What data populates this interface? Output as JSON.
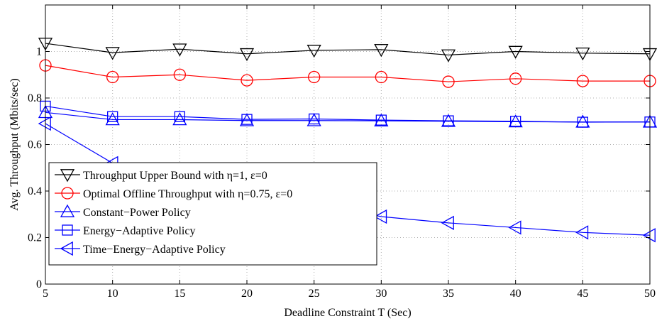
{
  "chart_data": {
    "type": "line",
    "xlabel": "Deadline Constraint T (Sec)",
    "ylabel": "Avg. Throughput (Mbits/sec)",
    "xlim": [
      5,
      50
    ],
    "ylim": [
      0,
      1.2
    ],
    "xticks": [
      "5",
      "10",
      "15",
      "20",
      "25",
      "30",
      "35",
      "40",
      "45",
      "50"
    ],
    "yticks": [
      "0",
      "0.2",
      "0.4",
      "0.6",
      "0.8",
      "1"
    ],
    "grid": true,
    "legend_position": "lower-left",
    "x": [
      5,
      10,
      15,
      20,
      25,
      30,
      35,
      40,
      45,
      50
    ],
    "series": [
      {
        "name": "Throughput Upper Bound with η=1, ε=0",
        "color": "#000000",
        "marker": "triangle-down",
        "values": [
          1.035,
          0.995,
          1.01,
          0.99,
          1.005,
          1.008,
          0.985,
          1.0,
          0.993,
          0.99
        ]
      },
      {
        "name": "Optimal Offline Throughput with η=0.75, ε=0",
        "color": "#ff0000",
        "marker": "circle",
        "values": [
          0.94,
          0.89,
          0.9,
          0.876,
          0.89,
          0.89,
          0.87,
          0.883,
          0.873,
          0.873
        ]
      },
      {
        "name": "Constant−Power Policy",
        "color": "#0000ff",
        "marker": "triangle-up",
        "values": [
          0.738,
          0.707,
          0.707,
          0.703,
          0.703,
          0.702,
          0.7,
          0.698,
          0.697,
          0.697
        ]
      },
      {
        "name": "Energy−Adaptive Policy",
        "color": "#0000ff",
        "marker": "square",
        "values": [
          0.765,
          0.72,
          0.72,
          0.708,
          0.71,
          0.705,
          0.702,
          0.7,
          0.696,
          0.697
        ]
      },
      {
        "name": "Time−Energy−Adaptive Policy",
        "color": "#0000ff",
        "marker": "triangle-left",
        "values": [
          0.69,
          0.52,
          null,
          null,
          null,
          0.29,
          0.263,
          0.243,
          0.222,
          0.21
        ]
      }
    ]
  }
}
